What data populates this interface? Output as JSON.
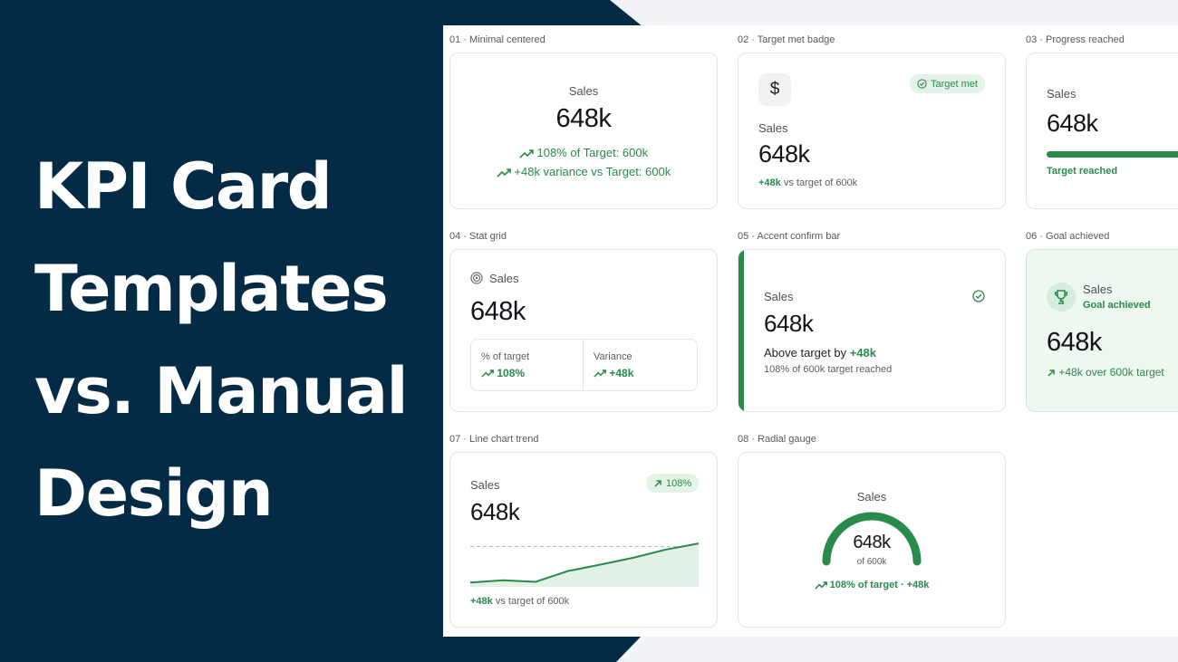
{
  "hero": {
    "line1": "KPI Card",
    "line2": "Templates",
    "line3": "vs. Manual",
    "line4": "Design"
  },
  "colors": {
    "navy": "#042b45",
    "green": "#2a8a4b",
    "light_green_bg": "#eef7f0"
  },
  "cards": {
    "c1": {
      "label": "01 · Minimal centered",
      "title": "Sales",
      "value": "648k",
      "line1": "108% of Target: 600k",
      "line2": "+48k variance vs Target: 600k"
    },
    "c2": {
      "label": "02 · Target met badge",
      "title": "Sales",
      "value": "648k",
      "badge": "Target met",
      "icon": "dollar-icon",
      "dollar": "$",
      "delta": "+48k",
      "delta_text": "vs target of 600k"
    },
    "c3": {
      "label": "03 · Progress reached",
      "title": "Sales",
      "value": "648k",
      "progress": 1.0,
      "status": "Target reached"
    },
    "c4": {
      "label": "04 · Stat grid",
      "title": "Sales",
      "value": "648k",
      "stat1_label": "% of target",
      "stat1_value": "108%",
      "stat2_label": "Variance",
      "stat2_value": "+48k"
    },
    "c5": {
      "label": "05 · Accent confirm bar",
      "title": "Sales",
      "value": "648k",
      "line_prefix": "Above target by",
      "line_delta": "+48k",
      "sub": "108% of 600k target reached"
    },
    "c6": {
      "label": "06 · Goal achieved",
      "title": "Sales",
      "status": "Goal achieved",
      "value": "648k",
      "line": "+48k over 600k target"
    },
    "c7": {
      "label": "07 · Line chart trend",
      "title": "Sales",
      "value": "648k",
      "badge": "108%",
      "delta": "+48k",
      "delta_text": "vs target of 600k"
    },
    "c8": {
      "label": "08 · Radial gauge",
      "title": "Sales",
      "value": "648k",
      "sub": "of 600k",
      "line": "108% of target · +48k",
      "gauge": 1.08
    }
  },
  "chart_data": {
    "type": "area",
    "series": [
      {
        "values": [
          0.04,
          0.1,
          0.06,
          0.35,
          0.52,
          0.7,
          0.92,
          1.08
        ]
      }
    ],
    "target": 1.0,
    "ylim": [
      0,
      1.3
    ]
  }
}
